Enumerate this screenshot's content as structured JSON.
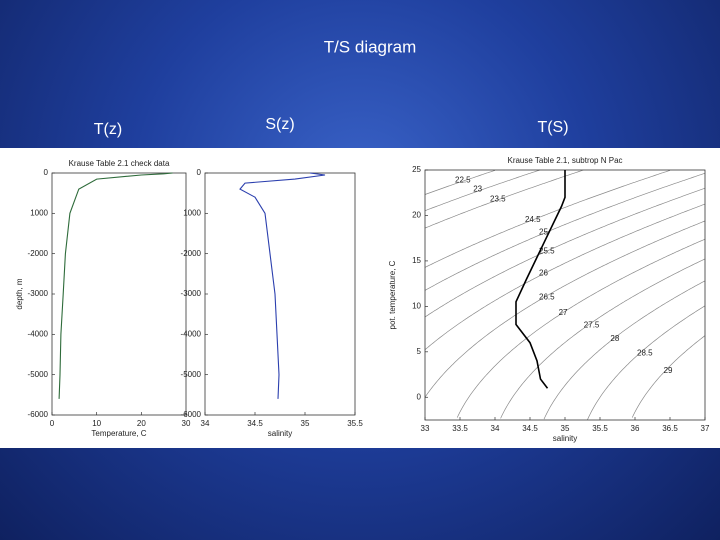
{
  "title": "T/S diagram",
  "chart_data": [
    {
      "type": "line",
      "heading": "T(z)",
      "title": "Krause Table 2.1 check data",
      "xlabel": "Temperature, C",
      "ylabel": "depth, m",
      "color": "#2e6b3a",
      "x": [
        27,
        25,
        20,
        10,
        6,
        4,
        3,
        2.5,
        2,
        1.8,
        1.6
      ],
      "values": [
        0,
        -20,
        -50,
        -150,
        -400,
        -1000,
        -2000,
        -3000,
        -4000,
        -5000,
        -5600
      ],
      "xlim": [
        0,
        30
      ],
      "xticks": [
        0,
        10,
        20,
        30
      ],
      "ylim": [
        -6000,
        0
      ],
      "yticks": [
        0,
        {
          "value": -1000,
          "label": "1000"
        },
        -2000,
        -3000,
        -4000,
        -5000,
        -6000
      ]
    },
    {
      "type": "line",
      "heading": "S(z)",
      "xlabel": "salinity",
      "color": "#2b3fae",
      "x": [
        35.05,
        35.2,
        34.9,
        34.4,
        34.35,
        34.5,
        34.6,
        34.65,
        34.7,
        34.72,
        34.74,
        34.73
      ],
      "values": [
        0,
        -50,
        -150,
        -250,
        -400,
        -600,
        -1000,
        -2000,
        -3000,
        -4000,
        -5000,
        -5600
      ],
      "xlim": [
        34,
        35.5
      ],
      "xticks": [
        34,
        34.5,
        35,
        35.5
      ],
      "ylim": [
        -6000,
        0
      ],
      "yticks": [
        0,
        {
          "value": -1000,
          "label": "1000"
        },
        -2000,
        -3000,
        -4000,
        -5000,
        -6000
      ]
    },
    {
      "type": "ts",
      "heading": "T(S)",
      "title": "Krause Table 2.1, subtrop N Pac",
      "xlabel": "salinity",
      "ylabel": "pot. temperature, C",
      "color": "#000000",
      "contour_color": "#8a8a8a",
      "x": [
        35,
        35,
        34.95,
        34.7,
        34.45,
        34.3,
        34.3,
        34.5,
        34.6,
        34.65,
        34.75
      ],
      "values": [
        25,
        22,
        21,
        17,
        13,
        10.5,
        8,
        6,
        4,
        2,
        1
      ],
      "contour_levels": [
        22.5,
        23,
        23.5,
        24.5,
        25,
        25.5,
        26,
        26.5,
        27,
        27.5,
        28,
        28.5,
        29
      ],
      "xlim": [
        33,
        37
      ],
      "xticks": [
        33,
        33.5,
        34,
        34.5,
        35,
        35.5,
        36,
        36.5,
        37
      ],
      "ylim": [
        -2.5,
        25
      ],
      "yticks": [
        0,
        5,
        10,
        15,
        20,
        25
      ]
    }
  ]
}
